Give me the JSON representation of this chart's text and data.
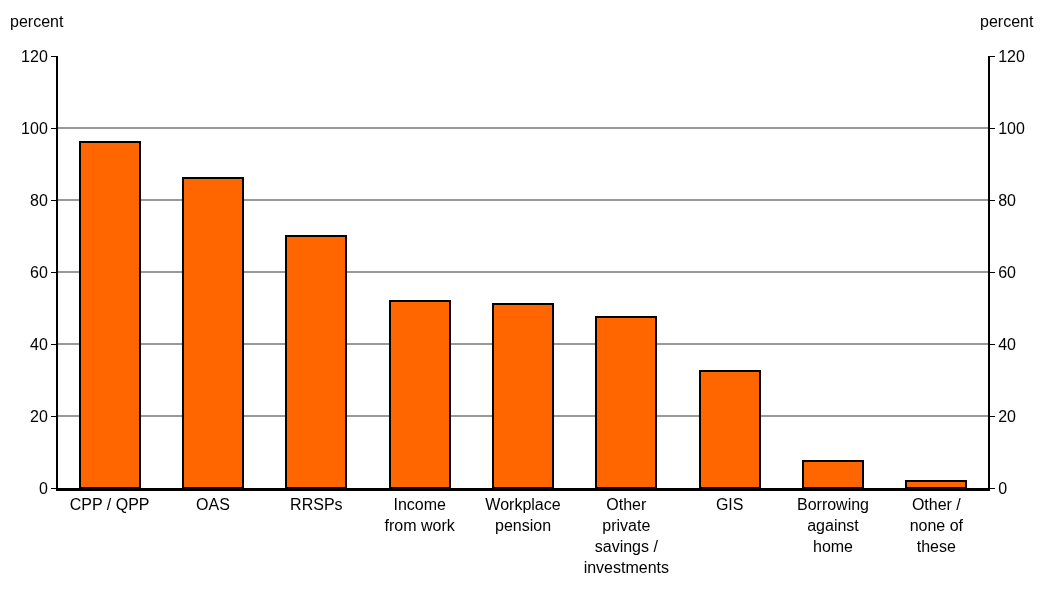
{
  "chart_data": {
    "type": "bar",
    "categories": [
      "CPP / QPP",
      "OAS",
      "RRSPs",
      "Income from work",
      "Workplace pension",
      "Other private savings / investments",
      "GIS",
      "Borrowing against home",
      "Other / none of these"
    ],
    "values": [
      96,
      86,
      70,
      52,
      51,
      47.5,
      32.5,
      7.5,
      2
    ],
    "color": "#ff6600",
    "ylabel": "percent",
    "y2label": "percent",
    "ylim": [
      0,
      120
    ],
    "yticks": [
      0,
      20,
      40,
      60,
      80,
      100,
      120
    ],
    "y2lim": [
      0,
      120
    ],
    "y2ticks": [
      0,
      20,
      40,
      60,
      80,
      100,
      120
    ],
    "grid": "y"
  }
}
